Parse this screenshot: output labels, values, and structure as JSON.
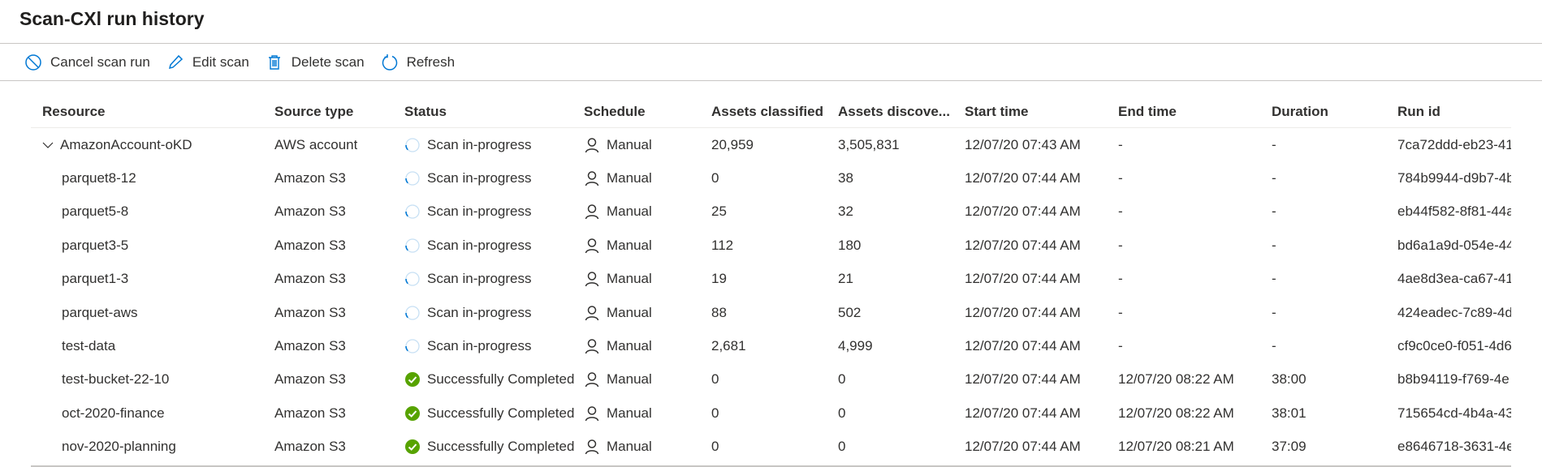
{
  "title": "Scan-CXl run history",
  "toolbar": {
    "cancel": "Cancel scan run",
    "edit": "Edit scan",
    "delete": "Delete scan",
    "refresh": "Refresh"
  },
  "colors": {
    "accent": "#0078d4",
    "success": "#57a300"
  },
  "columns": [
    "Resource",
    "Source type",
    "Status",
    "Schedule",
    "Assets classified",
    "Assets discove...",
    "Start time",
    "End time",
    "Duration",
    "Run id"
  ],
  "rows": [
    {
      "resource": "AmazonAccount-oKD",
      "expanded": true,
      "source": "AWS account",
      "status": "Scan in-progress",
      "state": "progress",
      "schedule": "Manual",
      "classified": "20,959",
      "discovered": "3,505,831",
      "start": "12/07/20 07:43 AM",
      "end": "-",
      "duration": "-",
      "runid": "7ca72ddd-eb23-41"
    },
    {
      "resource": "parquet8-12",
      "source": "Amazon S3",
      "status": "Scan in-progress",
      "state": "progress",
      "schedule": "Manual",
      "classified": "0",
      "discovered": "38",
      "start": "12/07/20 07:44 AM",
      "end": "-",
      "duration": "-",
      "runid": "784b9944-d9b7-4b"
    },
    {
      "resource": "parquet5-8",
      "source": "Amazon S3",
      "status": "Scan in-progress",
      "state": "progress",
      "schedule": "Manual",
      "classified": "25",
      "discovered": "32",
      "start": "12/07/20 07:44 AM",
      "end": "-",
      "duration": "-",
      "runid": "eb44f582-8f81-44a"
    },
    {
      "resource": "parquet3-5",
      "source": "Amazon S3",
      "status": "Scan in-progress",
      "state": "progress",
      "schedule": "Manual",
      "classified": "112",
      "discovered": "180",
      "start": "12/07/20 07:44 AM",
      "end": "-",
      "duration": "-",
      "runid": "bd6a1a9d-054e-44"
    },
    {
      "resource": "parquet1-3",
      "source": "Amazon S3",
      "status": "Scan in-progress",
      "state": "progress",
      "schedule": "Manual",
      "classified": "19",
      "discovered": "21",
      "start": "12/07/20 07:44 AM",
      "end": "-",
      "duration": "-",
      "runid": "4ae8d3ea-ca67-41"
    },
    {
      "resource": "parquet-aws",
      "source": "Amazon S3",
      "status": "Scan in-progress",
      "state": "progress",
      "schedule": "Manual",
      "classified": "88",
      "discovered": "502",
      "start": "12/07/20 07:44 AM",
      "end": "-",
      "duration": "-",
      "runid": "424eadec-7c89-4d"
    },
    {
      "resource": "test-data",
      "source": "Amazon S3",
      "status": "Scan in-progress",
      "state": "progress",
      "schedule": "Manual",
      "classified": "2,681",
      "discovered": "4,999",
      "start": "12/07/20 07:44 AM",
      "end": "-",
      "duration": "-",
      "runid": "cf9c0ce0-f051-4d6"
    },
    {
      "resource": "test-bucket-22-10",
      "source": "Amazon S3",
      "status": "Successfully Completed",
      "state": "done",
      "schedule": "Manual",
      "classified": "0",
      "discovered": "0",
      "start": "12/07/20 07:44 AM",
      "end": "12/07/20 08:22 AM",
      "duration": "38:00",
      "runid": "b8b94119-f769-4e"
    },
    {
      "resource": "oct-2020-finance",
      "source": "Amazon S3",
      "status": "Successfully Completed",
      "state": "done",
      "schedule": "Manual",
      "classified": "0",
      "discovered": "0",
      "start": "12/07/20 07:44 AM",
      "end": "12/07/20 08:22 AM",
      "duration": "38:01",
      "runid": "715654cd-4b4a-43"
    },
    {
      "resource": "nov-2020-planning",
      "source": "Amazon S3",
      "status": "Successfully Completed",
      "state": "done",
      "schedule": "Manual",
      "classified": "0",
      "discovered": "0",
      "start": "12/07/20 07:44 AM",
      "end": "12/07/20 08:21 AM",
      "duration": "37:09",
      "runid": "e8646718-3631-4e"
    }
  ]
}
